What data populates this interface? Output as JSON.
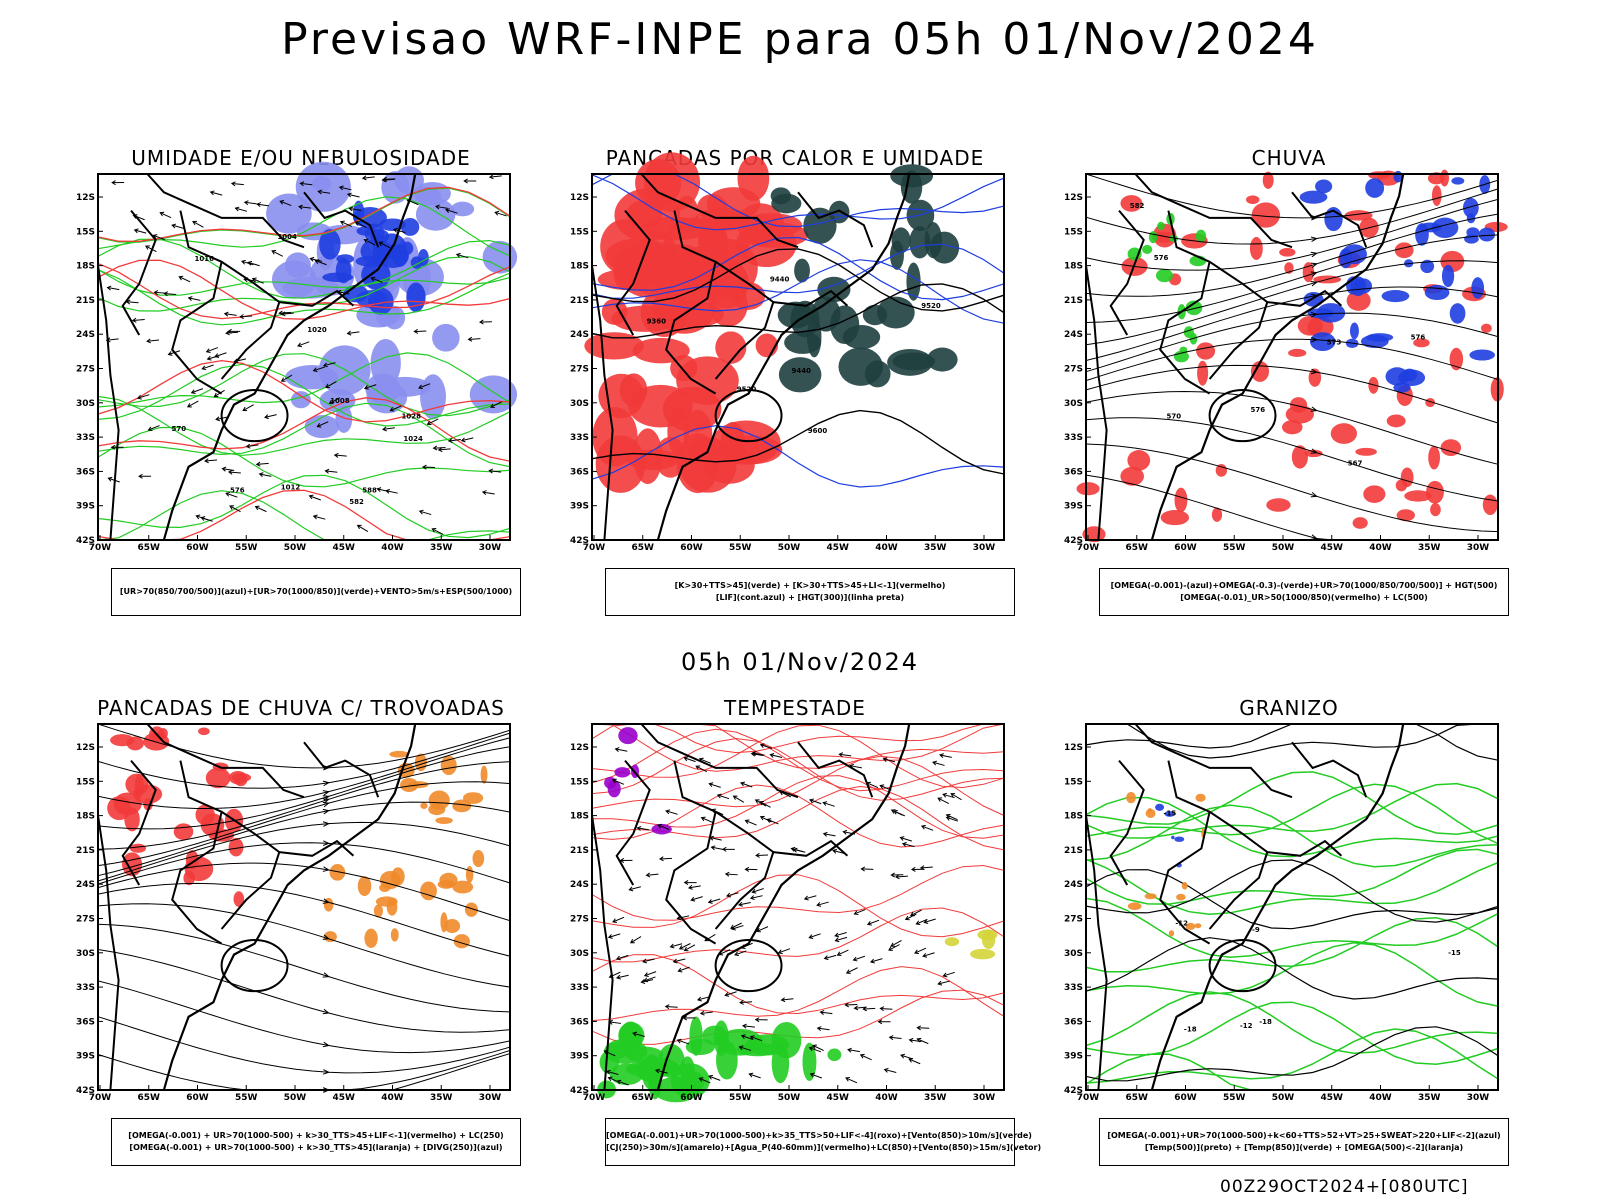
{
  "title": "Previsao WRF-INPE  para 05h 01/Nov/2024",
  "mid_label": "05h 01/Nov/2024",
  "footer": "00Z29OCT2024+[080UTC]",
  "lat_ticks": [
    "12S",
    "15S",
    "18S",
    "21S",
    "24S",
    "27S",
    "30S",
    "33S",
    "36S",
    "39S",
    "42S"
  ],
  "lon_ticks": [
    "70W",
    "65W",
    "60W",
    "55W",
    "50W",
    "45W",
    "40W",
    "35W",
    "30W"
  ],
  "colors": {
    "red": "#f23a3a",
    "green": "#22cc22",
    "blue": "#1f3ee0",
    "lavender": "#8a8ff0",
    "darkteal": "#1f3f3f",
    "orange": "#f0892a",
    "yellow": "#d4d43a",
    "purple": "#9900cc"
  },
  "panels": [
    {
      "title": "UMIDADE E/OU NEBULOSIDADE",
      "legend": [
        "[UR>70(850/700/500)](azul)+[UR>70(1000/850)](verde)+VENTO>5m/s+ESP(500/1000)"
      ],
      "labels": [
        "1004",
        "1008",
        "1012",
        "1016",
        "1020",
        "1024",
        "1028",
        "570",
        "576",
        "582",
        "588"
      ]
    },
    {
      "title": "PANCADAS POR CALOR E UMIDADE",
      "legend": [
        "[K>30+TTS>45](verde) + [K>30+TTS>45+LI<-1](vermelho)",
        "[LIF](cont.azul) + [HGT(300)](linha preta)"
      ],
      "labels": [
        "9600",
        "9520",
        "9440",
        "9360",
        "9440",
        "9520"
      ]
    },
    {
      "title": "CHUVA",
      "legend": [
        "[OMEGA(-0.001)-(azul)+OMEGA(-0.3)-(verde)+UR>70(1000/850/700/500)] + HGT(500)",
        "[OMEGA(-0.01)_UR>50(1000/850)(vermelho) + LC(500)"
      ],
      "labels": [
        "582",
        "576",
        "576",
        "573",
        "570",
        "567",
        "576"
      ]
    },
    {
      "title": "PANCADAS DE CHUVA C/ TROVOADAS",
      "legend": [
        "[OMEGA(-0.001) + UR>70(1000-500) + k>30_TTS>45+LIF<-1](vermelho) + LC(250)",
        "[OMEGA(-0.001) + UR>70(1000-500) + k>30_TTS>45](laranja) + [DIVG(250)](azul)"
      ],
      "labels": []
    },
    {
      "title": "TEMPESTADE",
      "legend": [
        "[OMEGA(-0.001)+UR>70(1000-500)+k>35_TTS>50+LIF<-4](roxo)+[Vento(850)>10m/s](verde)",
        "[CJ(250)>30m/s](amarelo)+[Agua_P(40-60mm)](vermelho)+LC(850)+[Vento(850)>15m/s](vetor)"
      ],
      "labels": []
    },
    {
      "title": "GRANIZO",
      "legend": [
        "[OMEGA(-0.001)+UR>70(1000-500)+k<60+TTS>52+VT>25+SWEAT>220+LIF<-2](azul)",
        "[Temp(500)](preto) + [Temp(850)](verde) + [OMEGA(500)<-2](laranja)"
      ],
      "labels": [
        "-9",
        "-12",
        "-15",
        "-18",
        "-15",
        "-12",
        "-18"
      ]
    }
  ]
}
